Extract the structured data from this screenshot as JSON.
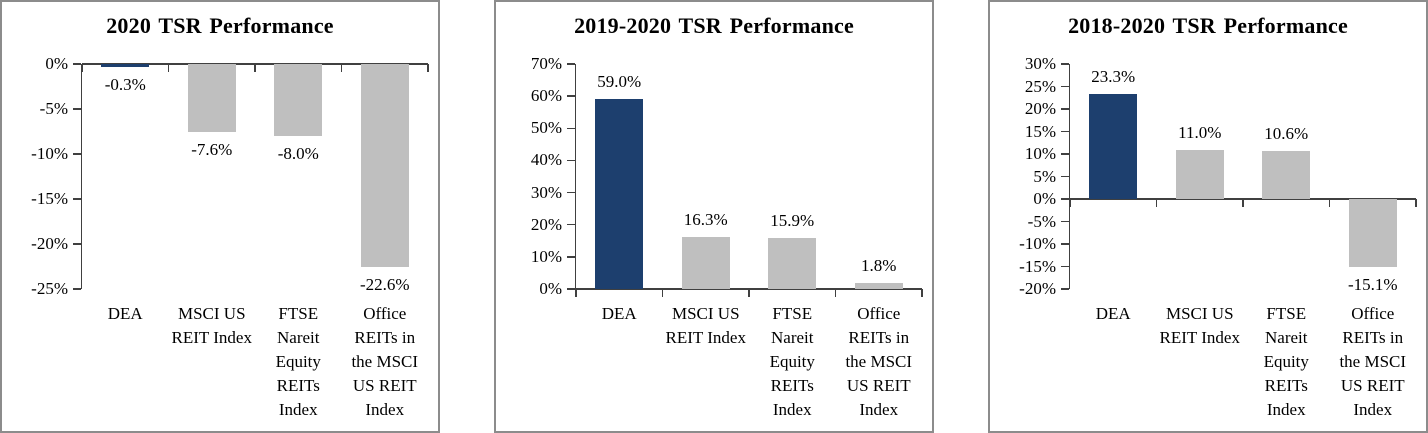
{
  "chart_data": [
    {
      "type": "bar",
      "title": "2020 TSR Performance",
      "categories": [
        "DEA",
        "MSCI US REIT Index",
        "FTSE Nareit Equity REITs Index",
        "Office REITs in the MSCI US REIT Index"
      ],
      "category_lines": [
        [
          "DEA"
        ],
        [
          "MSCI US",
          "REIT Index"
        ],
        [
          "FTSE",
          "Nareit",
          "Equity",
          "REITs",
          "Index"
        ],
        [
          "Office",
          "REITs in",
          "the MSCI",
          "US REIT",
          "Index"
        ]
      ],
      "values": [
        -0.3,
        -7.6,
        -8.0,
        -22.6
      ],
      "value_labels": [
        "-0.3%",
        "-7.6%",
        "-8.0%",
        "-22.6%"
      ],
      "ylim": [
        -25,
        0
      ],
      "yticks": [
        {
          "value": 0,
          "label": "0%"
        },
        {
          "value": -5,
          "label": "-5%"
        },
        {
          "value": -10,
          "label": "-10%"
        },
        {
          "value": -15,
          "label": "-15%"
        },
        {
          "value": -20,
          "label": "-20%"
        },
        {
          "value": -25,
          "label": "-25%"
        }
      ],
      "bar_colors": [
        "#1d3f6e",
        "#bfbfbf",
        "#bfbfbf",
        "#bfbfbf"
      ],
      "grid": false,
      "legend": "none"
    },
    {
      "type": "bar",
      "title": "2019-2020 TSR Performance",
      "categories": [
        "DEA",
        "MSCI US REIT Index",
        "FTSE Nareit Equity REITs Index",
        "Office REITs in the MSCI US REIT Index"
      ],
      "category_lines": [
        [
          "DEA"
        ],
        [
          "MSCI US",
          "REIT Index"
        ],
        [
          "FTSE",
          "Nareit",
          "Equity",
          "REITs",
          "Index"
        ],
        [
          "Office",
          "REITs in",
          "the MSCI",
          "US REIT",
          "Index"
        ]
      ],
      "values": [
        59.0,
        16.3,
        15.9,
        1.8
      ],
      "value_labels": [
        "59.0%",
        "16.3%",
        "15.9%",
        "1.8%"
      ],
      "ylim": [
        0,
        70
      ],
      "yticks": [
        {
          "value": 70,
          "label": "70%"
        },
        {
          "value": 60,
          "label": "60%"
        },
        {
          "value": 50,
          "label": "50%"
        },
        {
          "value": 40,
          "label": "40%"
        },
        {
          "value": 30,
          "label": "30%"
        },
        {
          "value": 20,
          "label": "20%"
        },
        {
          "value": 10,
          "label": "10%"
        },
        {
          "value": 0,
          "label": "0%"
        }
      ],
      "bar_colors": [
        "#1d3f6e",
        "#bfbfbf",
        "#bfbfbf",
        "#bfbfbf"
      ],
      "grid": false,
      "legend": "none"
    },
    {
      "type": "bar",
      "title": "2018-2020 TSR Performance",
      "categories": [
        "DEA",
        "MSCI US REIT Index",
        "FTSE Nareit Equity REITs Index",
        "Office REITs in the MSCI US REIT Index"
      ],
      "category_lines": [
        [
          "DEA"
        ],
        [
          "MSCI US",
          "REIT Index"
        ],
        [
          "FTSE",
          "Nareit",
          "Equity",
          "REITs",
          "Index"
        ],
        [
          "Office",
          "REITs in",
          "the MSCI",
          "US REIT",
          "Index"
        ]
      ],
      "values": [
        23.3,
        11.0,
        10.6,
        -15.1
      ],
      "value_labels": [
        "23.3%",
        "11.0%",
        "10.6%",
        "-15.1%"
      ],
      "ylim": [
        -20,
        30
      ],
      "yticks": [
        {
          "value": 30,
          "label": "30%"
        },
        {
          "value": 25,
          "label": "25%"
        },
        {
          "value": 20,
          "label": "20%"
        },
        {
          "value": 15,
          "label": "15%"
        },
        {
          "value": 10,
          "label": "10%"
        },
        {
          "value": 5,
          "label": "5%"
        },
        {
          "value": 0,
          "label": "0%"
        },
        {
          "value": -5,
          "label": "-5%"
        },
        {
          "value": -10,
          "label": "-10%"
        },
        {
          "value": -15,
          "label": "-15%"
        },
        {
          "value": -20,
          "label": "-20%"
        }
      ],
      "bar_colors": [
        "#1d3f6e",
        "#bfbfbf",
        "#bfbfbf",
        "#bfbfbf"
      ],
      "grid": false,
      "legend": "none"
    }
  ],
  "colors": {
    "dea_bar": "#1d3f6e",
    "benchmark_bar": "#bfbfbf",
    "axis_line": "#404040",
    "panel_border": "#8c8c8c",
    "text": "#000000"
  }
}
